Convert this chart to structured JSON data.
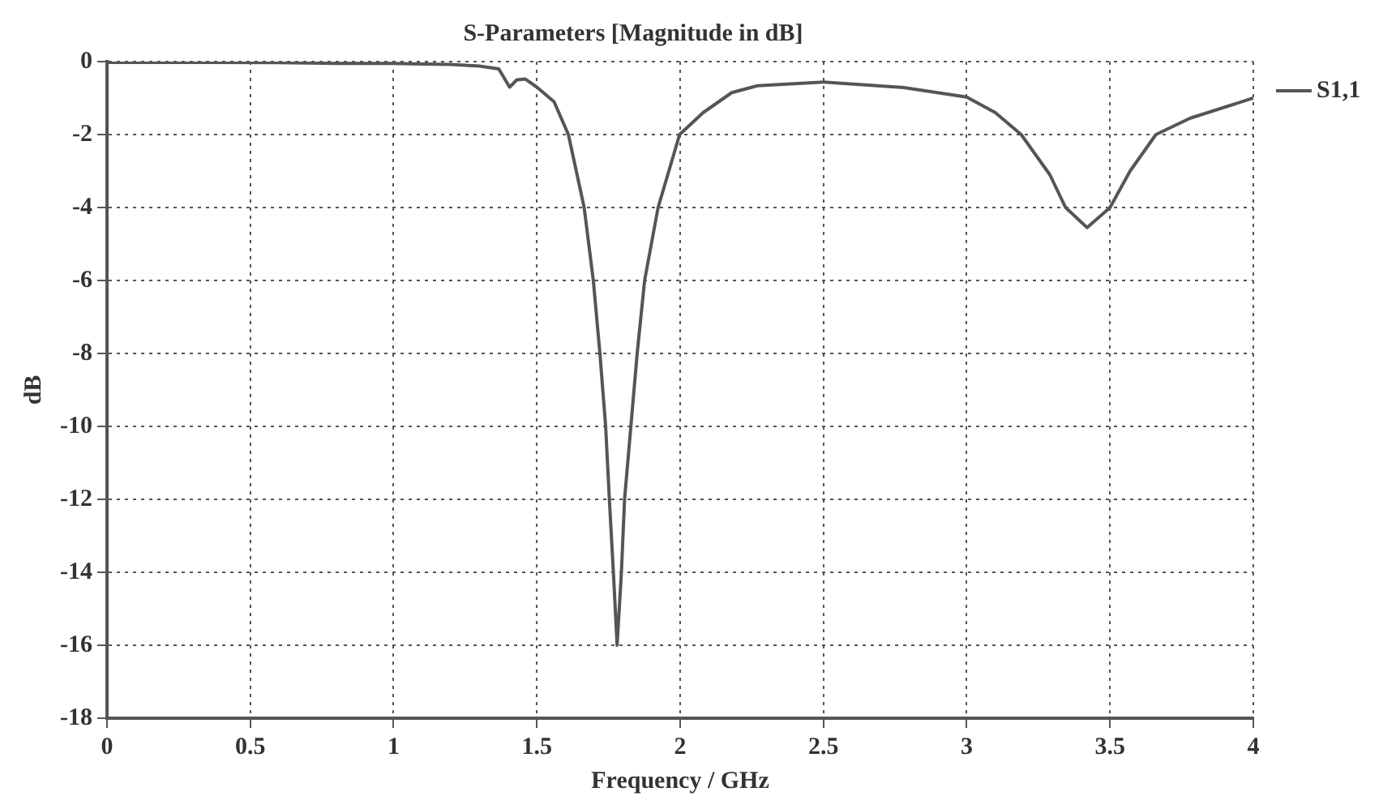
{
  "chart_data": {
    "type": "line",
    "title": "S-Parameters [Magnitude in dB]",
    "xlabel": "Frequency / GHz",
    "ylabel": "dB",
    "xlim": [
      0,
      4
    ],
    "xticks": [
      0,
      0.5,
      1,
      1.5,
      2,
      2.5,
      3,
      3.5,
      4
    ],
    "ylim": [
      -18,
      0
    ],
    "yticks": [
      0,
      -2,
      -4,
      -6,
      -8,
      -10,
      -12,
      -14,
      -16,
      -18
    ],
    "grid": true,
    "legend": "top right",
    "line_style": "solid",
    "marker": "none",
    "series": [
      {
        "name": "S1,1",
        "color": "#555555",
        "x": [
          0,
          0.3,
          0.6,
          0.8,
          1.0,
          1.2,
          1.3,
          1.367,
          1.405,
          1.43,
          1.46,
          1.5,
          1.56,
          1.61,
          1.665,
          1.697,
          1.72,
          1.74,
          1.753,
          1.767,
          1.78,
          1.795,
          1.806,
          1.828,
          1.85,
          1.876,
          1.923,
          1.998,
          2.08,
          2.18,
          2.27,
          2.5,
          2.78,
          3.0,
          3.1,
          3.19,
          3.29,
          3.345,
          3.42,
          3.5,
          3.57,
          3.66,
          3.78,
          4.0
        ],
        "values": [
          -0.02,
          -0.02,
          -0.03,
          -0.05,
          -0.05,
          -0.08,
          -0.12,
          -0.2,
          -0.7,
          -0.5,
          -0.48,
          -0.7,
          -1.1,
          -2,
          -4,
          -6,
          -8,
          -10,
          -12,
          -14,
          -16,
          -14,
          -12,
          -10,
          -8,
          -6,
          -4,
          -2,
          -1.4,
          -0.85,
          -0.66,
          -0.56,
          -0.71,
          -0.97,
          -1.4,
          -2,
          -3.1,
          -4,
          -4.55,
          -4,
          -3,
          -2,
          -1.55,
          -1
        ]
      }
    ]
  }
}
